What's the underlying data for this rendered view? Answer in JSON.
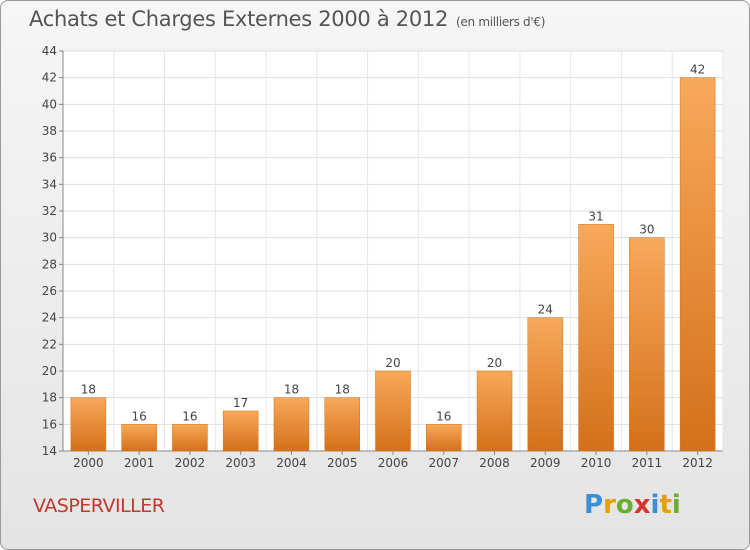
{
  "title": "Achats et Charges Externes 2000 à 2012",
  "subtitle": "(en milliers d'€)",
  "location": "VASPERVILLER",
  "logo": {
    "letters": [
      "P",
      "r",
      "o",
      "x",
      "i",
      "t",
      "i"
    ],
    "colors": [
      "#3b8fd4",
      "#e5a100",
      "#6cae2f",
      "#d9342b",
      "#3b8fd4",
      "#e5a100",
      "#6cae2f"
    ]
  },
  "colors": {
    "bar": "#f08a24",
    "bar_light": "#f7a95a",
    "bar_dark": "#d4701a"
  },
  "chart_data": {
    "type": "bar",
    "title": "Achats et Charges Externes 2000 à 2012",
    "subtitle": "(en milliers d'€)",
    "categories": [
      "2000",
      "2001",
      "2002",
      "2003",
      "2004",
      "2005",
      "2006",
      "2007",
      "2008",
      "2009",
      "2010",
      "2011",
      "2012"
    ],
    "values": [
      18,
      16,
      16,
      17,
      18,
      18,
      20,
      16,
      20,
      24,
      31,
      30,
      42
    ],
    "ylim": [
      14,
      44
    ],
    "yticks": [
      14,
      16,
      18,
      20,
      22,
      24,
      26,
      28,
      30,
      32,
      34,
      36,
      38,
      40,
      42,
      44
    ],
    "grid": true,
    "xlabel": "",
    "ylabel": ""
  }
}
